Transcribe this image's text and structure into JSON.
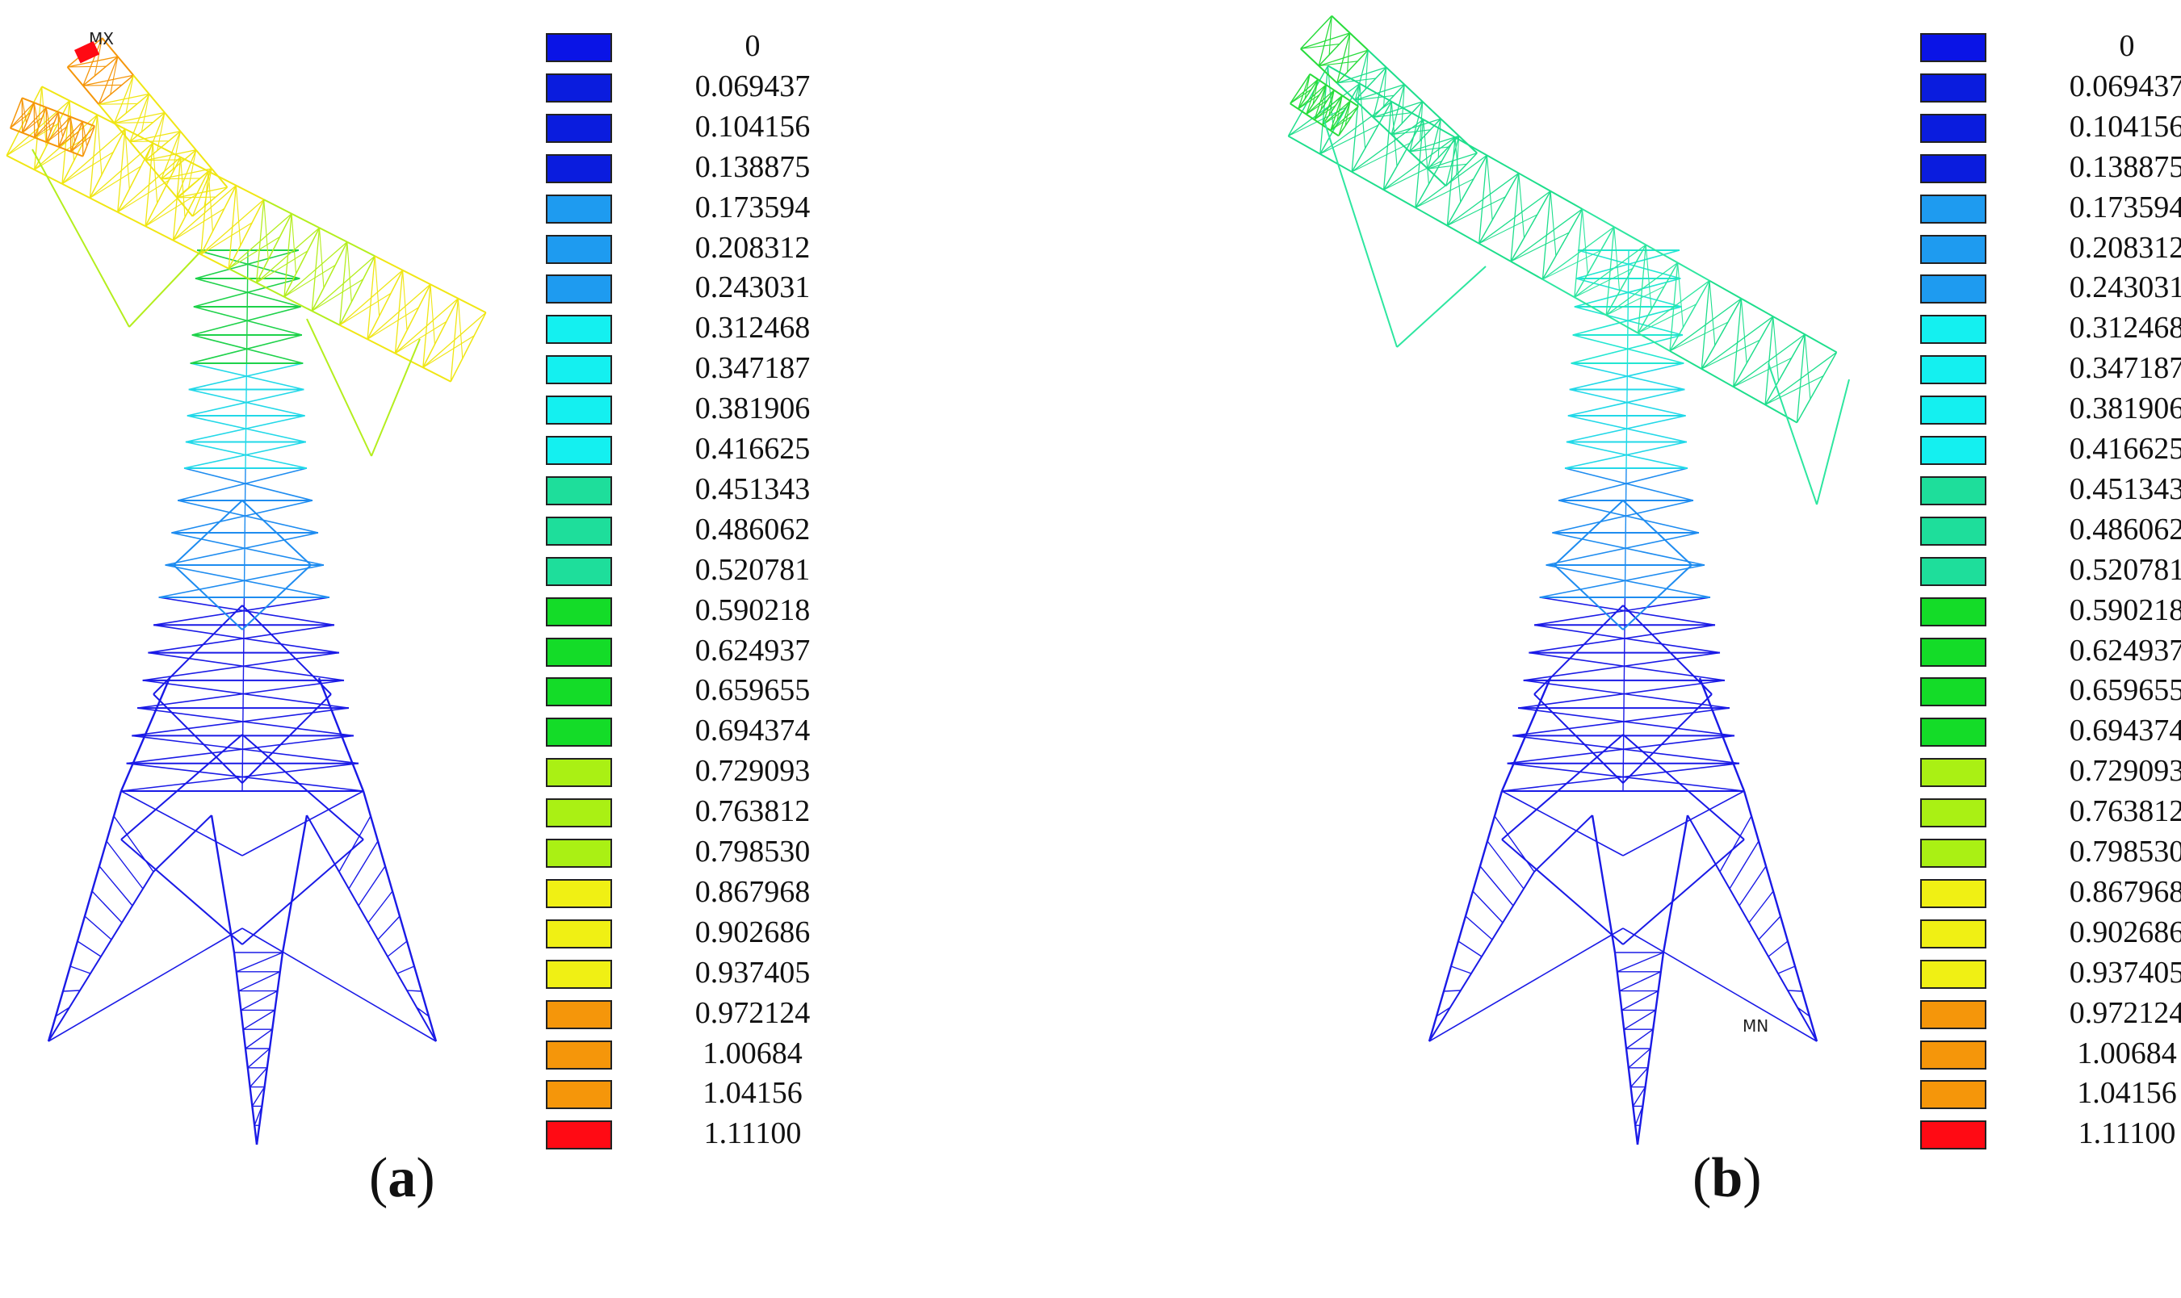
{
  "legend": {
    "labels": [
      "0",
      "0.069437",
      "0.104156",
      "0.138875",
      "0.173594",
      "0.208312",
      "0.243031",
      "0.312468",
      "0.347187",
      "0.381906",
      "0.416625",
      "0.451343",
      "0.486062",
      "0.520781",
      "0.590218",
      "0.624937",
      "0.659655",
      "0.694374",
      "0.729093",
      "0.763812",
      "0.798530",
      "0.867968",
      "0.902686",
      "0.937405",
      "0.972124",
      "1.00684",
      "1.04156",
      "1.11100"
    ],
    "colors": [
      "#0a14e6",
      "#0a1cde",
      "#0a1cde",
      "#0a1cde",
      "#1e9bf0",
      "#1e9bf0",
      "#1e9bf0",
      "#14f0f0",
      "#14f0f0",
      "#14f0f0",
      "#14f0f0",
      "#1ede9b",
      "#1ede9b",
      "#1ede9b",
      "#14dc28",
      "#14dc28",
      "#14dc28",
      "#14dc28",
      "#aaf014",
      "#aaf014",
      "#aaf014",
      "#f0f014",
      "#f0f014",
      "#f0f014",
      "#f5960a",
      "#f5960a",
      "#f5960a",
      "#ff0a14"
    ]
  },
  "panels": [
    {
      "id": "a",
      "caption_letter": "a",
      "marker_text": "MX",
      "colors": {
        "base": "#1a1ae6",
        "lower_mid": "#1e8cf0",
        "mid": "#22d8e8",
        "upper": "#1ed24a",
        "arm_mid": "#b4ee1e",
        "arm_end": "#f0e614",
        "tip": "#f5960a",
        "max": "#ff0a14"
      }
    },
    {
      "id": "b",
      "caption_letter": "b",
      "marker_text": "MN",
      "colors": {
        "base": "#1a1ae6",
        "lower_mid": "#1e8cf0",
        "mid": "#22d8e8",
        "upper": "#22e6d2",
        "arm_mid": "#2ee6a0",
        "arm_end": "#1ede8c",
        "tip": "#28dc3c",
        "max": "#1ede8c"
      }
    }
  ]
}
